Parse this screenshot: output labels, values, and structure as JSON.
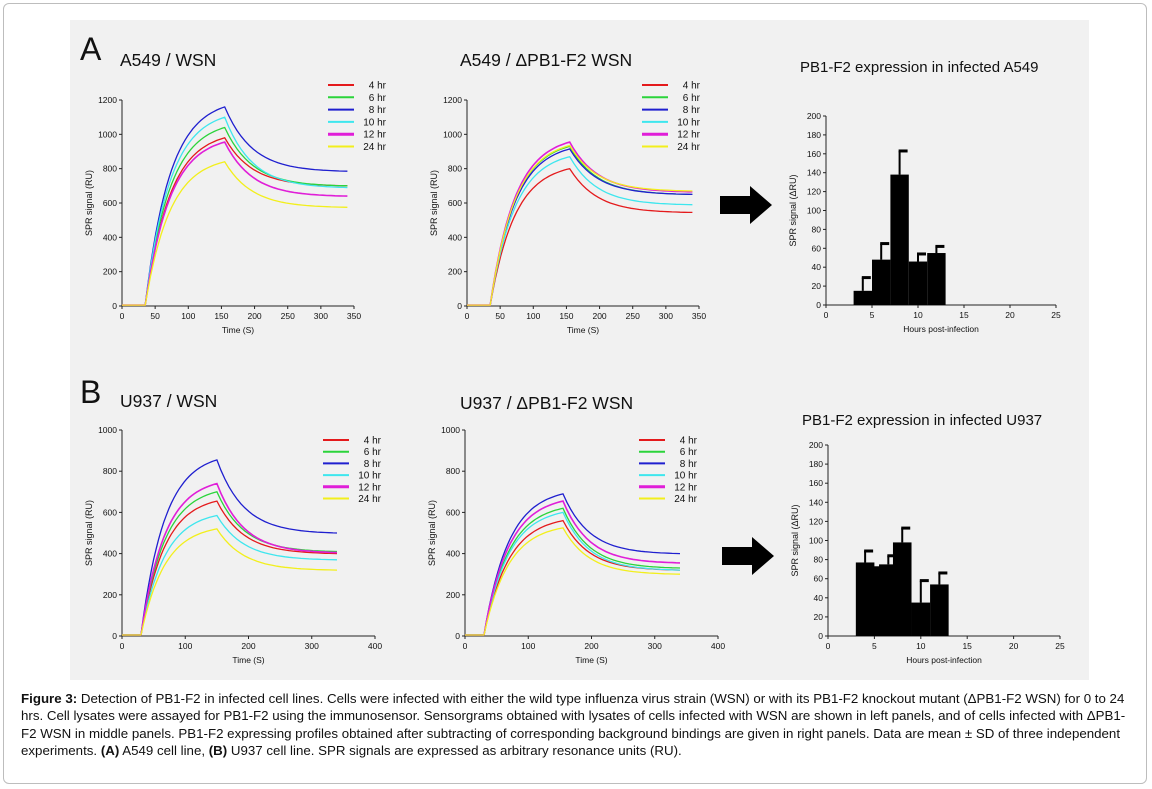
{
  "colors": {
    "4 hr": "#e41a1c",
    "6 hr": "#2bd43b",
    "8 hr": "#1f1fcf",
    "10 hr": "#3ee6ee",
    "12 hr": "#e01ed8",
    "24 hr": "#f2ef1c",
    "bar": "#000000",
    "panel_bg": "#f1f1f1"
  },
  "panel_labels": {
    "a": "A",
    "b": "B"
  },
  "arrow_icon": "right-arrow-icon",
  "caption": {
    "label": "Figure 3:",
    "text": " Detection of PB1-F2 in infected cell lines. Cells were infected with either the wild type influenza virus strain (WSN) or with its PB1-F2 knockout mutant (ΔPB1-F2 WSN) for 0 to 24 hrs. Cell lysates were assayed for PB1-F2 using the immunosensor. Sensorgrams obtained with lysates of cells infected with WSN are shown in left panels, and of cells infected with ΔPB1-F2 WSN in middle panels. PB1-F2 expressing profiles obtained after subtracting of corresponding background bindings are given in right panels. Data are mean ± SD of three independent experiments. ",
    "a_label": "(A)",
    "a_text": " A549 cell line, ",
    "b_label": "(B)",
    "b_text": " U937 cell line. SPR signals are expressed as arbitrary resonance units (RU)."
  },
  "chart_data": [
    {
      "id": "A-left",
      "type": "line",
      "title": "A549 / WSN",
      "xlabel": "Time (S)",
      "ylabel": "SPR signal (RU)",
      "xlim": [
        0,
        350
      ],
      "ylim": [
        0,
        1200
      ],
      "xticks": [
        0,
        50,
        100,
        150,
        200,
        250,
        300,
        350
      ],
      "yticks": [
        0,
        200,
        400,
        600,
        800,
        1000,
        1200
      ],
      "start": 35,
      "peak_x": 155,
      "end_x": 340,
      "series": [
        {
          "name": "4 hr",
          "peak": 980,
          "end": 700
        },
        {
          "name": "6 hr",
          "peak": 1040,
          "end": 700
        },
        {
          "name": "8 hr",
          "peak": 1160,
          "end": 785
        },
        {
          "name": "10 hr",
          "peak": 1100,
          "end": 690
        },
        {
          "name": "12 hr",
          "peak": 955,
          "end": 640
        },
        {
          "name": "24 hr",
          "peak": 840,
          "end": 575
        }
      ]
    },
    {
      "id": "A-mid",
      "type": "line",
      "title": "A549 / ΔPB1-F2 WSN",
      "xlabel": "Time (S)",
      "ylabel": "SPR signal (RU)",
      "xlim": [
        0,
        350
      ],
      "ylim": [
        0,
        1200
      ],
      "xticks": [
        0,
        50,
        100,
        150,
        200,
        250,
        300,
        350
      ],
      "yticks": [
        0,
        200,
        400,
        600,
        800,
        1000,
        1200
      ],
      "start": 35,
      "peak_x": 155,
      "end_x": 340,
      "series": [
        {
          "name": "4 hr",
          "peak": 800,
          "end": 545
        },
        {
          "name": "6 hr",
          "peak": 930,
          "end": 650
        },
        {
          "name": "8 hr",
          "peak": 915,
          "end": 650
        },
        {
          "name": "10 hr",
          "peak": 870,
          "end": 590
        },
        {
          "name": "12 hr",
          "peak": 955,
          "end": 665
        },
        {
          "name": "24 hr",
          "peak": 935,
          "end": 670
        }
      ]
    },
    {
      "id": "A-right",
      "type": "bar",
      "title": "PB1-F2 expression in infected A549",
      "xlabel": "Hours post-infection",
      "ylabel": "SPR signal (ΔRU)",
      "xlim": [
        0,
        25
      ],
      "ylim": [
        0,
        200
      ],
      "xticks": [
        0,
        5,
        10,
        15,
        20,
        25
      ],
      "yticks": [
        0,
        20,
        40,
        60,
        80,
        100,
        120,
        140,
        160,
        180,
        200
      ],
      "bars": [
        {
          "x": 4,
          "value": 15,
          "err": 14
        },
        {
          "x": 6,
          "value": 48,
          "err": 17
        },
        {
          "x": 8,
          "value": 138,
          "err": 25
        },
        {
          "x": 10,
          "value": 46,
          "err": 8
        },
        {
          "x": 12,
          "value": 55,
          "err": 7
        }
      ]
    },
    {
      "id": "B-left",
      "type": "line",
      "title": "U937 /  WSN",
      "xlabel": "Time (S)",
      "ylabel": "SPR signal (RU)",
      "xlim": [
        0,
        400
      ],
      "ylim": [
        0,
        1000
      ],
      "xticks": [
        0,
        100,
        200,
        300,
        400
      ],
      "yticks": [
        0,
        200,
        400,
        600,
        800,
        1000
      ],
      "start": 30,
      "peak_x": 150,
      "end_x": 340,
      "series": [
        {
          "name": "4 hr",
          "peak": 655,
          "end": 400
        },
        {
          "name": "6 hr",
          "peak": 700,
          "end": 410
        },
        {
          "name": "8 hr",
          "peak": 855,
          "end": 500
        },
        {
          "name": "10 hr",
          "peak": 585,
          "end": 370
        },
        {
          "name": "12 hr",
          "peak": 740,
          "end": 405
        },
        {
          "name": "24 hr",
          "peak": 520,
          "end": 320
        }
      ]
    },
    {
      "id": "B-mid",
      "type": "line",
      "title": "U937 / ΔPB1-F2 WSN",
      "xlabel": "Time (S)",
      "ylabel": "SPR signal (RU)",
      "xlim": [
        0,
        400
      ],
      "ylim": [
        0,
        1000
      ],
      "xticks": [
        0,
        100,
        200,
        300,
        400
      ],
      "yticks": [
        0,
        200,
        400,
        600,
        800,
        1000
      ],
      "start": 30,
      "peak_x": 155,
      "end_x": 340,
      "series": [
        {
          "name": "4 hr",
          "peak": 560,
          "end": 320
        },
        {
          "name": "6 hr",
          "peak": 620,
          "end": 330
        },
        {
          "name": "8 hr",
          "peak": 690,
          "end": 400
        },
        {
          "name": "10 hr",
          "peak": 600,
          "end": 320
        },
        {
          "name": "12 hr",
          "peak": 655,
          "end": 355
        },
        {
          "name": "24 hr",
          "peak": 525,
          "end": 300
        }
      ]
    },
    {
      "id": "B-right",
      "type": "bar",
      "title": "PB1-F2 expression in infected U937",
      "xlabel": "Hours post-infection",
      "ylabel": "SPR signal (ΔRU)",
      "xlim": [
        0,
        25
      ],
      "ylim": [
        0,
        200
      ],
      "xticks": [
        0,
        5,
        10,
        15,
        20,
        25
      ],
      "yticks": [
        0,
        20,
        40,
        60,
        80,
        100,
        120,
        140,
        160,
        180,
        200
      ],
      "bars": [
        {
          "x": 4,
          "value": 77,
          "err": 12
        },
        {
          "x": 5.5,
          "value": 73,
          "err": 0
        },
        {
          "x": 6.5,
          "value": 75,
          "err": 9
        },
        {
          "x": 8,
          "value": 98,
          "err": 15
        },
        {
          "x": 10,
          "value": 35,
          "err": 23
        },
        {
          "x": 12,
          "value": 54,
          "err": 12
        }
      ]
    }
  ]
}
